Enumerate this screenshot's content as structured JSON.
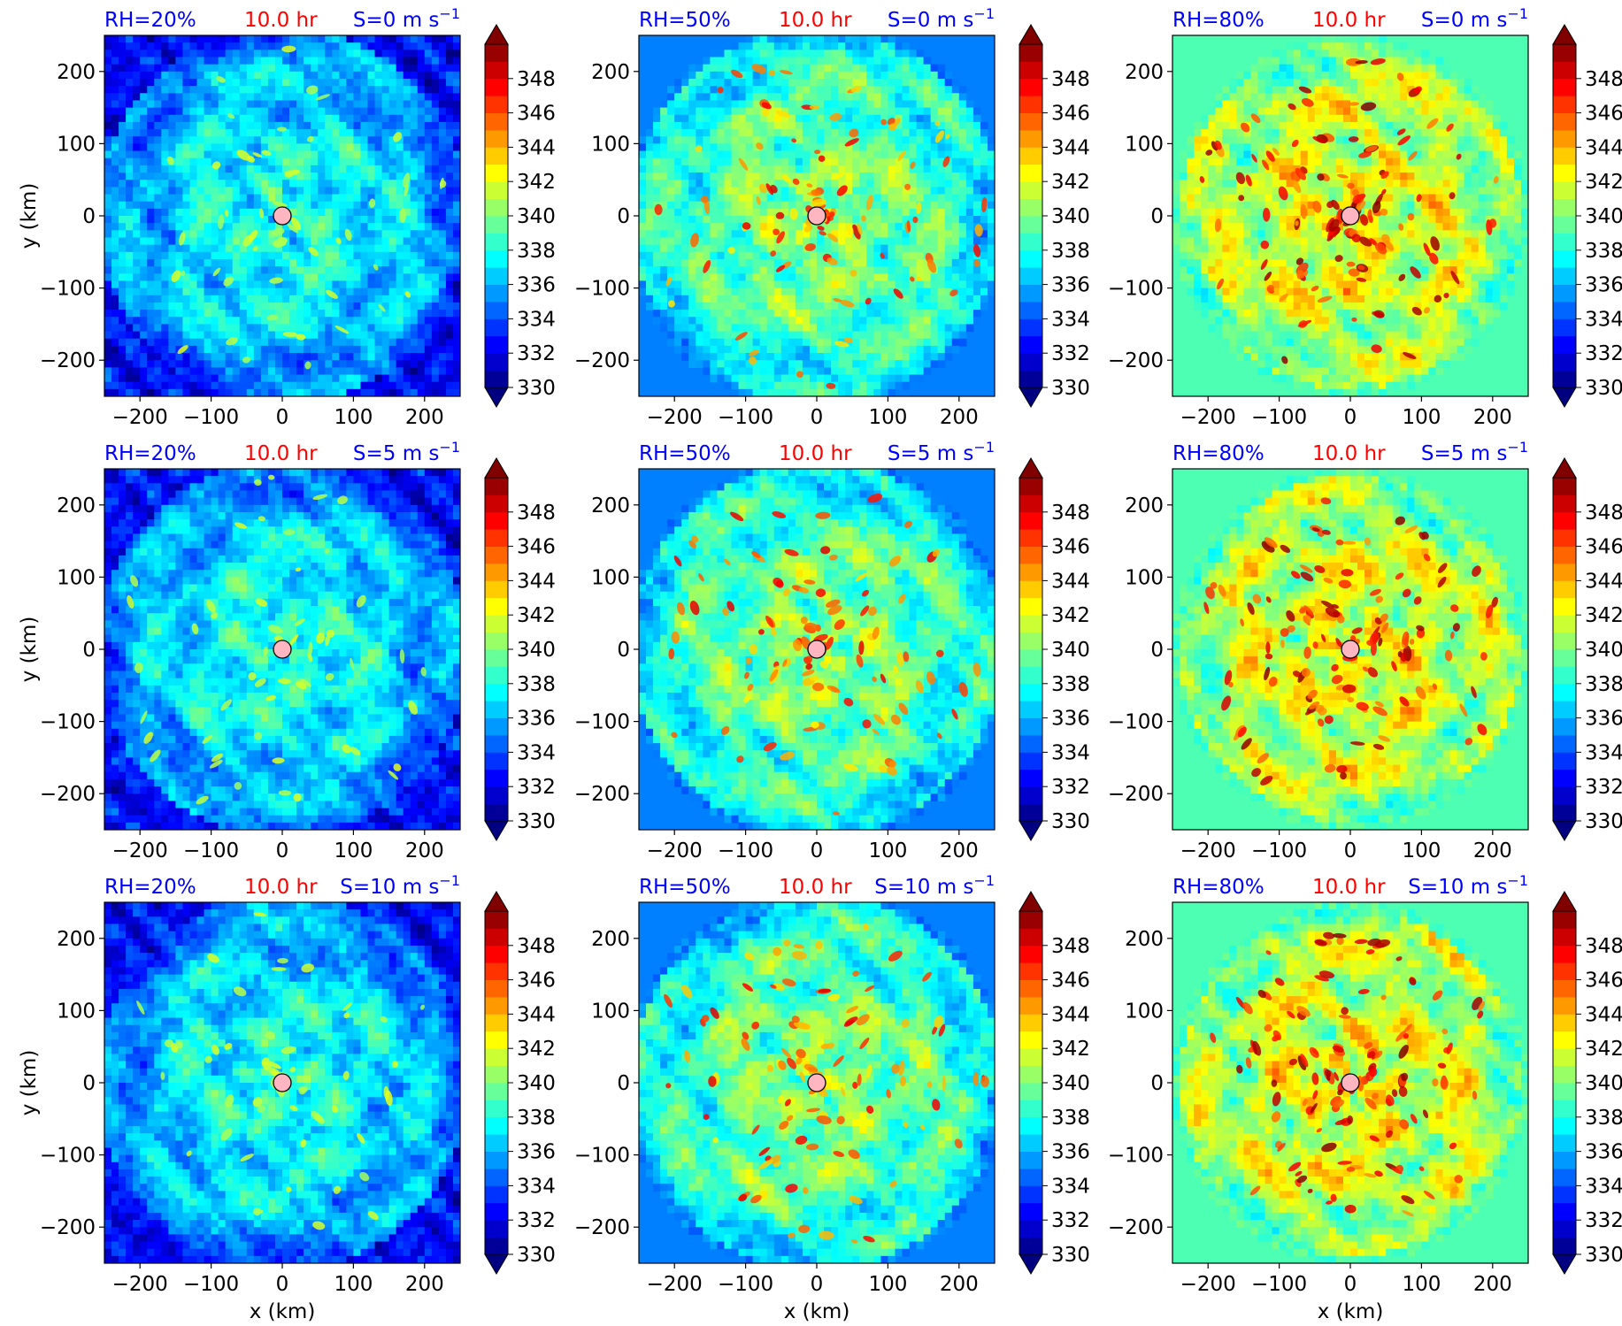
{
  "figure": {
    "grid": "3 rows x 3 columns",
    "shared_colorbar": {
      "ticks": [
        330,
        332,
        334,
        336,
        338,
        340,
        342,
        344,
        346,
        348
      ],
      "range": [
        330,
        350
      ],
      "levels_step": 1,
      "extend": "both",
      "colormap": "jet"
    }
  },
  "chart_data": [
    {
      "type": "heatmap",
      "rh_label": "RH=20%",
      "time_label": "10.0 hr",
      "shear_label": "S=0 m s",
      "shear_exp": "−1",
      "xlabel": "",
      "ylabel": "y (km)",
      "xticks": [
        -200,
        -100,
        0,
        100,
        200
      ],
      "yticks": [
        -200,
        -100,
        0,
        100,
        200
      ],
      "xlim": [
        -250,
        250
      ],
      "ylim": [
        -250,
        250
      ],
      "colors": {
        "rh": "#0000ff",
        "time": "#ff0000",
        "shear": "#0000ff"
      },
      "field_description_level": "mean ~337, edges ~332",
      "center_marker": [
        0,
        0
      ]
    },
    {
      "type": "heatmap",
      "rh_label": "RH=50%",
      "time_label": "10.0 hr",
      "shear_label": "S=0 m s",
      "shear_exp": "−1",
      "xlabel": "",
      "ylabel": "",
      "xticks": [
        -200,
        -100,
        0,
        100,
        200
      ],
      "yticks": [
        -200,
        -100,
        0,
        100,
        200
      ],
      "xlim": [
        -250,
        250
      ],
      "ylim": [
        -250,
        250
      ],
      "colors": {
        "rh": "#0000ff",
        "time": "#ff0000",
        "shear": "#0000ff"
      },
      "center_marker": [
        0,
        0
      ]
    },
    {
      "type": "heatmap",
      "rh_label": "RH=80%",
      "time_label": "10.0 hr",
      "shear_label": "S=0 m s",
      "shear_exp": "−1",
      "xlabel": "",
      "ylabel": "",
      "xticks": [
        -200,
        -100,
        0,
        100,
        200
      ],
      "yticks": [
        -200,
        -100,
        0,
        100,
        200
      ],
      "xlim": [
        -250,
        250
      ],
      "ylim": [
        -250,
        250
      ],
      "colors": {
        "rh": "#0000ff",
        "time": "#ff0000",
        "shear": "#0000ff"
      },
      "center_marker": [
        0,
        0
      ]
    },
    {
      "type": "heatmap",
      "rh_label": "RH=20%",
      "time_label": "10.0 hr",
      "shear_label": "S=5 m s",
      "shear_exp": "−1",
      "xlabel": "",
      "ylabel": "y (km)",
      "xticks": [
        -200,
        -100,
        0,
        100,
        200
      ],
      "yticks": [
        -200,
        -100,
        0,
        100,
        200
      ],
      "xlim": [
        -250,
        250
      ],
      "ylim": [
        -250,
        250
      ],
      "colors": {
        "rh": "#0000ff",
        "time": "#ff0000",
        "shear": "#0000ff"
      },
      "center_marker": [
        0,
        0
      ]
    },
    {
      "type": "heatmap",
      "rh_label": "RH=50%",
      "time_label": "10.0 hr",
      "shear_label": "S=5 m s",
      "shear_exp": "−1",
      "xlabel": "",
      "ylabel": "",
      "xticks": [
        -200,
        -100,
        0,
        100,
        200
      ],
      "yticks": [
        -200,
        -100,
        0,
        100,
        200
      ],
      "xlim": [
        -250,
        250
      ],
      "ylim": [
        -250,
        250
      ],
      "colors": {
        "rh": "#0000ff",
        "time": "#ff0000",
        "shear": "#0000ff"
      },
      "center_marker": [
        0,
        0
      ]
    },
    {
      "type": "heatmap",
      "rh_label": "RH=80%",
      "time_label": "10.0 hr",
      "shear_label": "S=5 m s",
      "shear_exp": "−1",
      "xlabel": "",
      "ylabel": "",
      "xticks": [
        -200,
        -100,
        0,
        100,
        200
      ],
      "yticks": [
        -200,
        -100,
        0,
        100,
        200
      ],
      "xlim": [
        -250,
        250
      ],
      "ylim": [
        -250,
        250
      ],
      "colors": {
        "rh": "#0000ff",
        "time": "#ff0000",
        "shear": "#0000ff"
      },
      "center_marker": [
        0,
        0
      ]
    },
    {
      "type": "heatmap",
      "rh_label": "RH=20%",
      "time_label": "10.0 hr",
      "shear_label": "S=10 m s",
      "shear_exp": "−1",
      "xlabel": "x (km)",
      "ylabel": "y (km)",
      "xticks": [
        -200,
        -100,
        0,
        100,
        200
      ],
      "yticks": [
        -200,
        -100,
        0,
        100,
        200
      ],
      "xlim": [
        -250,
        250
      ],
      "ylim": [
        -250,
        250
      ],
      "colors": {
        "rh": "#0000ff",
        "time": "#ff0000",
        "shear": "#0000ff"
      },
      "center_marker": [
        0,
        0
      ]
    },
    {
      "type": "heatmap",
      "rh_label": "RH=50%",
      "time_label": "10.0 hr",
      "shear_label": "S=10 m s",
      "shear_exp": "−1",
      "xlabel": "x (km)",
      "ylabel": "",
      "xticks": [
        -200,
        -100,
        0,
        100,
        200
      ],
      "yticks": [
        -200,
        -100,
        0,
        100,
        200
      ],
      "xlim": [
        -250,
        250
      ],
      "ylim": [
        -250,
        250
      ],
      "colors": {
        "rh": "#0000ff",
        "time": "#ff0000",
        "shear": "#0000ff"
      },
      "center_marker": [
        0,
        0
      ]
    },
    {
      "type": "heatmap",
      "rh_label": "RH=80%",
      "time_label": "10.0 hr",
      "shear_label": "S=10 m s",
      "shear_exp": "−1",
      "xlabel": "x (km)",
      "ylabel": "",
      "xticks": [
        -200,
        -100,
        0,
        100,
        200
      ],
      "yticks": [
        -200,
        -100,
        0,
        100,
        200
      ],
      "xlim": [
        -250,
        250
      ],
      "ylim": [
        -250,
        250
      ],
      "colors": {
        "rh": "#0000ff",
        "time": "#ff0000",
        "shear": "#0000ff"
      },
      "center_marker": [
        0,
        0
      ]
    }
  ]
}
